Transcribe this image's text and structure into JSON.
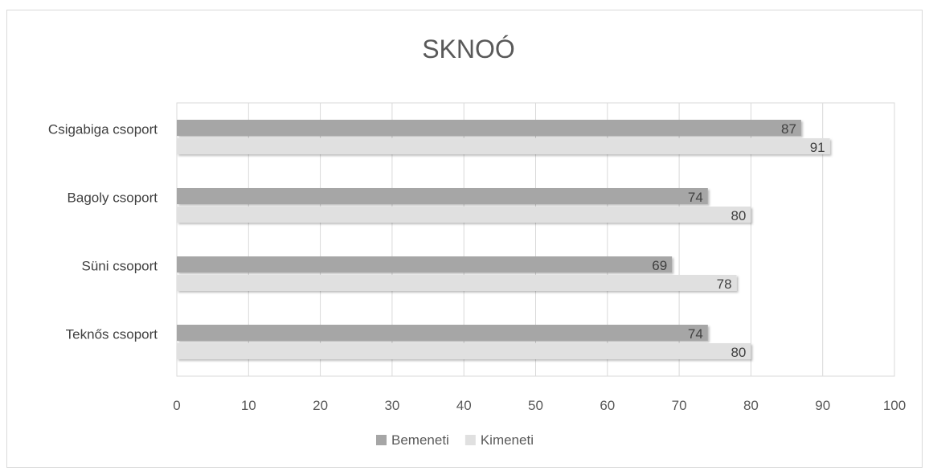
{
  "chart_data": {
    "type": "bar",
    "orientation": "horizontal",
    "title": "SKNOÓ",
    "categories": [
      "Csigabiga csoport",
      "Bagoly csoport",
      "Süni csoport",
      "Teknős csoport"
    ],
    "series": [
      {
        "name": "Bemeneti",
        "values": [
          87,
          74,
          69,
          74
        ],
        "color": "#a6a6a6"
      },
      {
        "name": "Kimeneti",
        "values": [
          91,
          80,
          78,
          80
        ],
        "color": "#e0e0e0"
      }
    ],
    "xlim": [
      0,
      100
    ],
    "xticks": [
      0,
      10,
      20,
      30,
      40,
      50,
      60,
      70,
      80,
      90,
      100
    ],
    "grid": true,
    "data_labels": true,
    "legend_position": "bottom"
  }
}
